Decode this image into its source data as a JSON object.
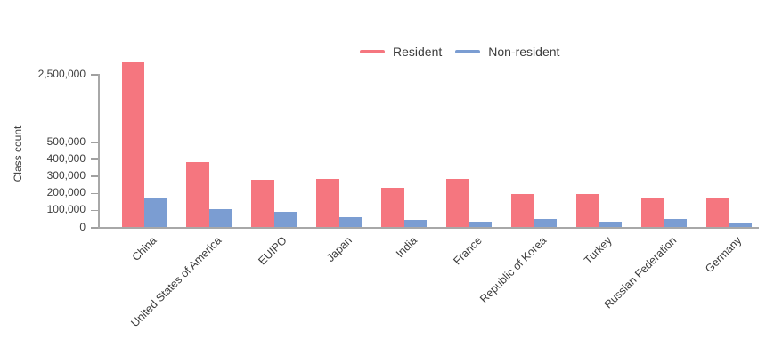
{
  "chart_data": {
    "type": "bar",
    "title": "",
    "xlabel": "",
    "ylabel": "Class count",
    "categories": [
      "China",
      "United States of America",
      "EUIPO",
      "Japan",
      "India",
      "France",
      "Republic of Korea",
      "Turkey",
      "Russian Federation",
      "Germany"
    ],
    "series": [
      {
        "name": "Resident",
        "color": "#f5767f",
        "values": [
          2850000,
          380000,
          275000,
          280000,
          230000,
          280000,
          195000,
          195000,
          165000,
          170000
        ]
      },
      {
        "name": "Non-resident",
        "color": "#7b9dd2",
        "values": [
          165000,
          105000,
          90000,
          55000,
          40000,
          30000,
          45000,
          30000,
          45000,
          20000
        ]
      }
    ],
    "y_ticks": [
      0,
      100000,
      200000,
      300000,
      400000,
      500000,
      2500000
    ],
    "y_tick_labels": [
      "0",
      "100,000",
      "200,000",
      "300,000",
      "400,000",
      "500,000",
      "2,500,000"
    ],
    "ylim": [
      0,
      2850000
    ],
    "axis_scale_note": "y axis linear to 500,000 then compressed up to 2,500,000",
    "grid": "off",
    "legend_position": "top-center",
    "bar_orientation": "vertical",
    "axis_color": "#a8a8a8",
    "text_color": "#3c3c3c"
  }
}
